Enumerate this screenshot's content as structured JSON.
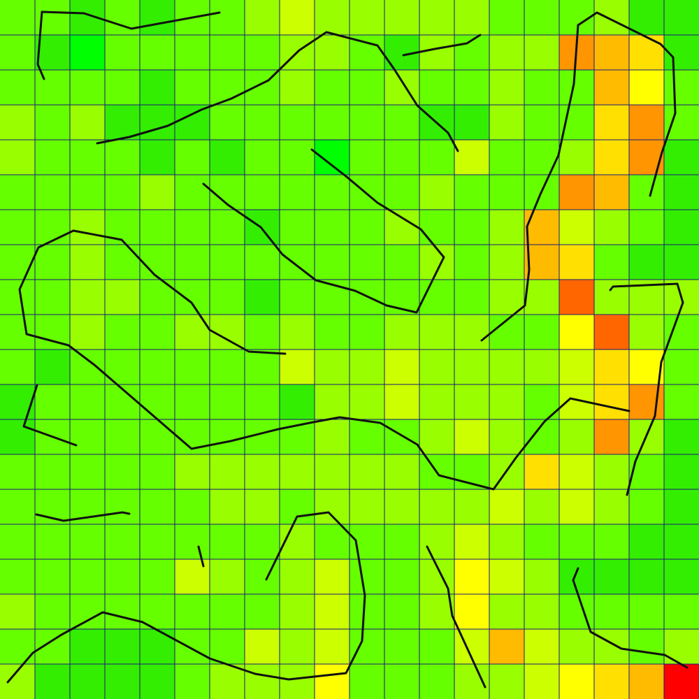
{
  "heatmap": {
    "rows": 20,
    "cols": 20,
    "grid_color": "#1a1a7a",
    "line_color": "#111111",
    "palette": {
      "0": "#00ff00",
      "1": "#33ee00",
      "2": "#66ff00",
      "3": "#99ff00",
      "4": "#ccff00",
      "5": "#ffff00",
      "6": "#ffe000",
      "7": "#ffbb00",
      "8": "#ff9500",
      "9": "#ff6600",
      "10": "#ff0000"
    },
    "values": [
      [
        2,
        2,
        1,
        2,
        1,
        2,
        2,
        3,
        4,
        3,
        3,
        3,
        3,
        3,
        2,
        2,
        2,
        3,
        1,
        1
      ],
      [
        2,
        1,
        0,
        2,
        2,
        2,
        2,
        2,
        3,
        3,
        2,
        1,
        3,
        2,
        3,
        3,
        8,
        7,
        6,
        1
      ],
      [
        2,
        2,
        2,
        2,
        1,
        2,
        2,
        2,
        3,
        2,
        2,
        3,
        2,
        2,
        3,
        2,
        2,
        7,
        5,
        2
      ],
      [
        3,
        2,
        3,
        1,
        1,
        1,
        2,
        2,
        2,
        2,
        2,
        2,
        1,
        1,
        3,
        2,
        2,
        6,
        8,
        2
      ],
      [
        3,
        2,
        2,
        2,
        1,
        2,
        1,
        2,
        2,
        0,
        2,
        2,
        2,
        4,
        2,
        2,
        3,
        6,
        8,
        1
      ],
      [
        2,
        2,
        2,
        2,
        3,
        2,
        2,
        2,
        2,
        2,
        2,
        2,
        3,
        2,
        2,
        2,
        8,
        7,
        2,
        1
      ],
      [
        2,
        2,
        3,
        2,
        2,
        2,
        2,
        1,
        2,
        2,
        2,
        3,
        2,
        2,
        3,
        7,
        4,
        3,
        2,
        1
      ],
      [
        2,
        2,
        3,
        2,
        2,
        2,
        2,
        2,
        2,
        2,
        2,
        2,
        3,
        2,
        3,
        7,
        6,
        2,
        1,
        1
      ],
      [
        2,
        2,
        3,
        3,
        2,
        2,
        2,
        1,
        2,
        2,
        2,
        2,
        2,
        2,
        3,
        3,
        9,
        3,
        3,
        3
      ],
      [
        2,
        2,
        3,
        2,
        2,
        3,
        3,
        2,
        3,
        2,
        2,
        3,
        3,
        3,
        2,
        2,
        5,
        9,
        3,
        2
      ],
      [
        2,
        1,
        2,
        2,
        2,
        2,
        2,
        2,
        4,
        3,
        3,
        4,
        3,
        3,
        3,
        3,
        4,
        6,
        5,
        2
      ],
      [
        1,
        2,
        2,
        2,
        2,
        2,
        2,
        2,
        1,
        3,
        3,
        4,
        3,
        3,
        3,
        2,
        4,
        6,
        8,
        2
      ],
      [
        1,
        2,
        2,
        2,
        2,
        2,
        2,
        2,
        2,
        3,
        2,
        2,
        3,
        4,
        3,
        2,
        3,
        8,
        3,
        1
      ],
      [
        2,
        2,
        2,
        2,
        2,
        3,
        3,
        3,
        3,
        3,
        3,
        3,
        2,
        2,
        3,
        6,
        4,
        3,
        2,
        1
      ],
      [
        2,
        2,
        2,
        2,
        2,
        2,
        3,
        3,
        2,
        3,
        3,
        3,
        3,
        3,
        4,
        3,
        4,
        3,
        2,
        1
      ],
      [
        2,
        2,
        2,
        2,
        2,
        2,
        2,
        2,
        3,
        2,
        2,
        2,
        3,
        4,
        3,
        2,
        2,
        2,
        1,
        1
      ],
      [
        2,
        2,
        2,
        2,
        2,
        4,
        3,
        2,
        3,
        4,
        2,
        2,
        3,
        5,
        4,
        3,
        1,
        1,
        1,
        1
      ],
      [
        3,
        2,
        2,
        2,
        2,
        2,
        2,
        2,
        3,
        4,
        2,
        2,
        3,
        5,
        3,
        3,
        2,
        2,
        2,
        2
      ],
      [
        2,
        2,
        1,
        1,
        1,
        2,
        2,
        4,
        3,
        4,
        2,
        2,
        2,
        4,
        7,
        4,
        3,
        3,
        2,
        3
      ],
      [
        3,
        1,
        1,
        1,
        1,
        2,
        3,
        3,
        3,
        5,
        2,
        2,
        2,
        3,
        3,
        4,
        5,
        6,
        7,
        10
      ]
    ],
    "contours": [
      [
        [
          60,
          17
        ],
        [
          120,
          19
        ],
        [
          188,
          41
        ],
        [
          314,
          18
        ]
      ],
      [
        [
          60,
          17
        ],
        [
          54,
          92
        ],
        [
          63,
          113
        ]
      ],
      [
        [
          139,
          205
        ],
        [
          185,
          196
        ],
        [
          240,
          180
        ],
        [
          288,
          157
        ],
        [
          331,
          141
        ],
        [
          384,
          115
        ],
        [
          428,
          72
        ],
        [
          467,
          46
        ],
        [
          540,
          65
        ],
        [
          564,
          99
        ],
        [
          597,
          151
        ],
        [
          641,
          190
        ],
        [
          655,
          216
        ]
      ],
      [
        [
          577,
          79
        ],
        [
          622,
          70
        ],
        [
          668,
          62
        ],
        [
          687,
          50
        ]
      ],
      [
        [
          827,
          36
        ],
        [
          854,
          18
        ],
        [
          945,
          63
        ],
        [
          963,
          82
        ],
        [
          966,
          162
        ],
        [
          947,
          218
        ],
        [
          930,
          280
        ]
      ],
      [
        [
          827,
          36
        ],
        [
          821,
          120
        ],
        [
          799,
          222
        ],
        [
          773,
          278
        ],
        [
          754,
          324
        ],
        [
          757,
          386
        ],
        [
          751,
          437
        ],
        [
          689,
          487
        ]
      ],
      [
        [
          446,
          214
        ],
        [
          496,
          253
        ],
        [
          540,
          290
        ],
        [
          602,
          328
        ],
        [
          635,
          368
        ],
        [
          596,
          447
        ],
        [
          553,
          437
        ],
        [
          508,
          416
        ],
        [
          452,
          401
        ],
        [
          404,
          364
        ],
        [
          373,
          325
        ],
        [
          326,
          293
        ],
        [
          291,
          263
        ]
      ],
      [
        [
          105,
          330
        ],
        [
          55,
          354
        ],
        [
          28,
          414
        ],
        [
          38,
          478
        ],
        [
          98,
          494
        ],
        [
          135,
          522
        ],
        [
          274,
          642
        ],
        [
          330,
          631
        ],
        [
          398,
          614
        ],
        [
          448,
          604
        ],
        [
          486,
          597
        ],
        [
          544,
          605
        ],
        [
          597,
          636
        ],
        [
          628,
          680
        ],
        [
          706,
          700
        ],
        [
          738,
          655
        ],
        [
          779,
          603
        ],
        [
          816,
          570
        ],
        [
          900,
          588
        ]
      ],
      [
        [
          105,
          330
        ],
        [
          174,
          343
        ],
        [
          221,
          393
        ],
        [
          274,
          433
        ],
        [
          300,
          472
        ],
        [
          356,
          503
        ],
        [
          408,
          506
        ]
      ],
      [
        [
          873,
          415
        ],
        [
          877,
          410
        ],
        [
          969,
          406
        ],
        [
          977,
          433
        ],
        [
          946,
          518
        ],
        [
          937,
          595
        ],
        [
          909,
          660
        ],
        [
          897,
          708
        ]
      ],
      [
        [
          53,
          551
        ],
        [
          34,
          610
        ],
        [
          109,
          637
        ]
      ],
      [
        [
          52,
          736
        ],
        [
          91,
          745
        ],
        [
          175,
          733
        ],
        [
          185,
          735
        ]
      ],
      [
        [
          284,
          782
        ],
        [
          291,
          810
        ]
      ],
      [
        [
          381,
          829
        ],
        [
          425,
          739
        ],
        [
          470,
          733
        ],
        [
          509,
          773
        ],
        [
          522,
          852
        ],
        [
          518,
          917
        ],
        [
          495,
          963
        ],
        [
          413,
          972
        ],
        [
          365,
          964
        ],
        [
          300,
          942
        ],
        [
          204,
          890
        ],
        [
          147,
          876
        ],
        [
          88,
          908
        ],
        [
          47,
          934
        ],
        [
          11,
          976
        ]
      ],
      [
        [
          611,
          782
        ],
        [
          641,
          842
        ],
        [
          647,
          881
        ],
        [
          694,
          983
        ]
      ],
      [
        [
          827,
          813
        ],
        [
          820,
          830
        ],
        [
          845,
          904
        ],
        [
          889,
          928
        ],
        [
          951,
          937
        ],
        [
          983,
          955
        ]
      ]
    ]
  }
}
